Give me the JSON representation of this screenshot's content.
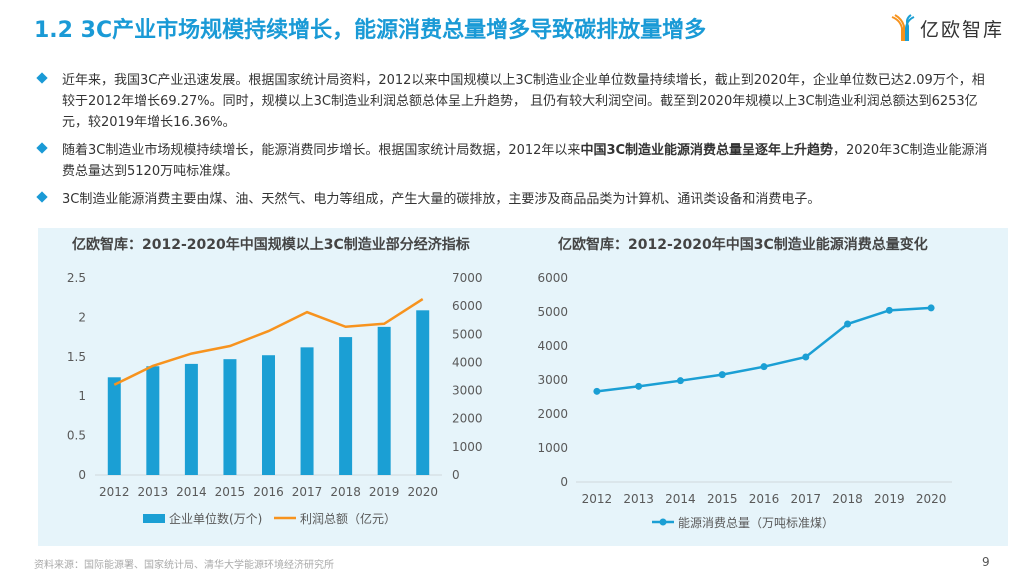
{
  "title": "1.2 3C产业市场规模持续增长，能源消费总量增多导致碳排放量增多",
  "logo": {
    "text": "亿欧智库"
  },
  "bullets": [
    {
      "parts": [
        {
          "t": "近年来，我国3C产业迅速发展。根据国家统计局资料，2012以来中国规模以上3C制造业企业单位数量持续增长，截止到2020年，企业单位数已达2.09万个，相较于2012年增长69.27%。同时，规模以上3C制造业利润总额总体呈上升趋势， 且仍有较大利润空间。截至到2020年规模以上3C制造业利润总额达到6253亿元，较2019年增长16.36%。",
          "b": false
        }
      ]
    },
    {
      "parts": [
        {
          "t": "随着3C制造业市场规模持续增长，能源消费同步增长。根据国家统计局数据，2012年以来",
          "b": false
        },
        {
          "t": "中国3C制造业能源消费总量呈逐年上升趋势",
          "b": true
        },
        {
          "t": "，2020年3C制造业能源消费总量达到5120万吨标准煤。",
          "b": false
        }
      ]
    },
    {
      "parts": [
        {
          "t": "3C制造业能源消费主要由煤、油、天然气、电力等组成，产生大量的碳排放，主要涉及商品品类为计算机、通讯类设备和消费电子。",
          "b": false
        }
      ]
    }
  ],
  "chart_data": [
    {
      "type": "bar+line",
      "title": "亿欧智库：2012-2020年中国规模以上3C制造业部分经济指标",
      "categories": [
        "2012",
        "2013",
        "2014",
        "2015",
        "2016",
        "2017",
        "2018",
        "2019",
        "2020"
      ],
      "series": [
        {
          "name": "企业单位数(万个)",
          "type": "bar",
          "axis": "left",
          "color": "#1b9fd4",
          "values": [
            1.24,
            1.38,
            1.41,
            1.47,
            1.52,
            1.62,
            1.75,
            1.88,
            2.09
          ]
        },
        {
          "name": "利润总额（亿元）",
          "type": "line",
          "axis": "right",
          "color": "#f7931e",
          "values": [
            3205,
            3877,
            4313,
            4584,
            5114,
            5786,
            5268,
            5374,
            6253
          ]
        }
      ],
      "ylim_left": [
        0,
        2.5
      ],
      "yticks_left": [
        "0",
        "0.5",
        "1",
        "1.5",
        "2",
        "2.5"
      ],
      "ylim_right": [
        0,
        7000
      ],
      "yticks_right": [
        "0",
        "1000",
        "2000",
        "3000",
        "4000",
        "5000",
        "6000",
        "7000"
      ],
      "legend": "bottom"
    },
    {
      "type": "line",
      "title": "亿欧智库：2012-2020年中国3C制造业能源消费总量变化",
      "categories": [
        "2012",
        "2013",
        "2014",
        "2015",
        "2016",
        "2017",
        "2018",
        "2019",
        "2020"
      ],
      "series": [
        {
          "name": "能源消费总量（万吨标准煤）",
          "color": "#1b9fd4",
          "values": [
            2667,
            2814,
            2980,
            3157,
            3392,
            3676,
            4647,
            5049,
            5120
          ]
        }
      ],
      "ylim": [
        0,
        6000
      ],
      "yticks": [
        "0",
        "1000",
        "2000",
        "3000",
        "4000",
        "5000",
        "6000"
      ],
      "legend": "bottom"
    }
  ],
  "source": "资料来源：国际能源署、国家统计局、清华大学能源环境经济研究所",
  "page_number": "9"
}
